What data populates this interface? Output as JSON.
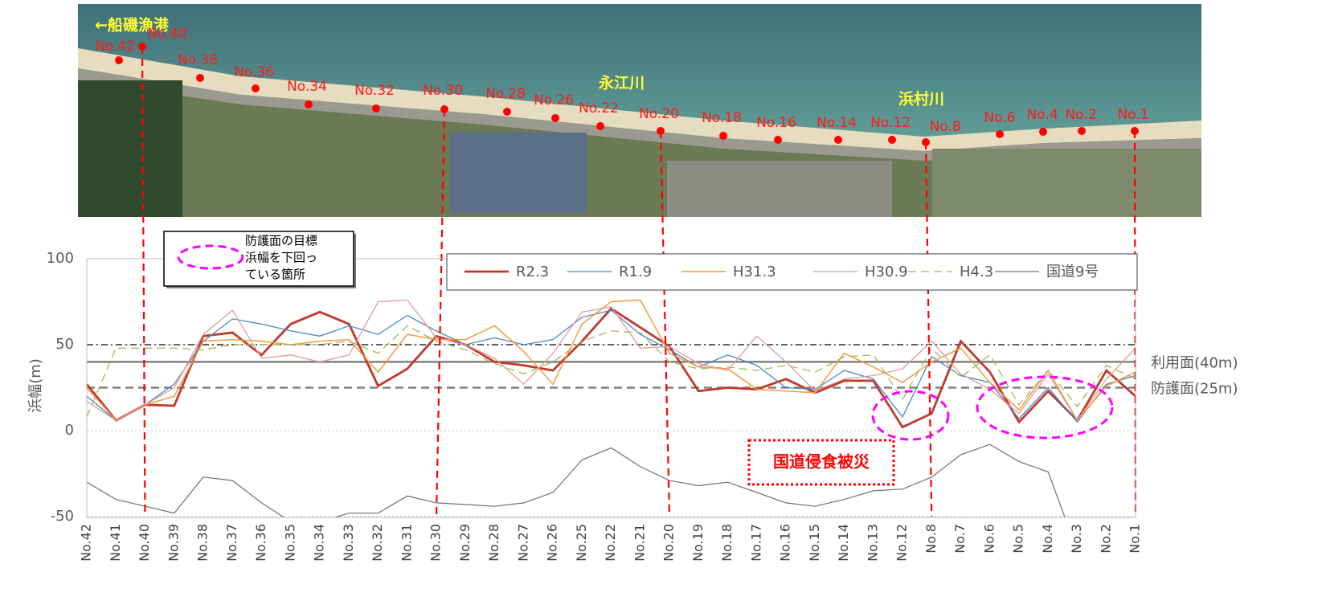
{
  "photo": {
    "places": [
      "←船磯漁港",
      "永江川",
      "浜村川"
    ],
    "site_labels": [
      "No.42",
      "No.40",
      "No.38",
      "No.36",
      "No.34",
      "No.32",
      "No.30",
      "No.28",
      "No.26",
      "No.22",
      "No.20",
      "No.18",
      "No.16",
      "No.14",
      "No.12",
      "No.8",
      "No.6",
      "No.4",
      "No.2",
      "No.1"
    ]
  },
  "annotations": {
    "target_legend": [
      "防護面の目標",
      "浜幅を下回っ",
      "ている箇所"
    ],
    "damage": "国道侵食被災"
  },
  "chart_data": {
    "type": "line",
    "y_label": "浜幅(m)",
    "categories": [
      "No.42",
      "No.41",
      "No.40",
      "No.39",
      "No.38",
      "No.37",
      "No.36",
      "No.35",
      "No.34",
      "No.33",
      "No.32",
      "No.31",
      "No.30",
      "No.29",
      "No.28",
      "No.27",
      "No.26",
      "No.25",
      "No.22",
      "No.21",
      "No.20",
      "No.19",
      "No.18",
      "No.17",
      "No.16",
      "No.15",
      "No.14",
      "No.13",
      "No.12",
      "No.8",
      "No.7",
      "No.6",
      "No.5",
      "No.4",
      "No.3",
      "No.2",
      "No.1"
    ],
    "ylim": [
      -50,
      100
    ],
    "yticks": [
      -50,
      0,
      50,
      100
    ],
    "section_boundaries": [
      "No.40",
      "No.30",
      "No.20",
      "No.8",
      "No.1"
    ],
    "reference_lines": [
      {
        "value": 50,
        "color": "#000000",
        "style": "dashdot"
      },
      {
        "value": 40,
        "color": "#808080",
        "style": "solid",
        "label": "利用面(40m)"
      },
      {
        "value": 25,
        "color": "#808080",
        "style": "dashed",
        "label": "防護面(25m)"
      }
    ],
    "series": [
      {
        "name": "R2.3",
        "color": "#c0392b",
        "style": "solid",
        "values": [
          27,
          6,
          15,
          14.5,
          55,
          57,
          44,
          62,
          69,
          62,
          26,
          36,
          55,
          50,
          40,
          38,
          35,
          52,
          71,
          60,
          49,
          23,
          25,
          24,
          30,
          22,
          29,
          29,
          2,
          10,
          52,
          34,
          5,
          23,
          6,
          35,
          20
        ]
      },
      {
        "name": "R1.9",
        "color": "#4a86c8",
        "style": "solid",
        "values": [
          20,
          6,
          15,
          27,
          52,
          65,
          62,
          58,
          55,
          61,
          56,
          67,
          58,
          50,
          54,
          50,
          53,
          66,
          70,
          56,
          47,
          37,
          44,
          38,
          25,
          24,
          35,
          30,
          8,
          43,
          32,
          28,
          7,
          25,
          5,
          27,
          32
        ]
      },
      {
        "name": "H31.3",
        "color": "#f59a3c",
        "style": "solid",
        "values": [
          25,
          6,
          15,
          20,
          52,
          53,
          52,
          50,
          52,
          53,
          34,
          56,
          53,
          53,
          61,
          46,
          27,
          62,
          75,
          76,
          45,
          37,
          36,
          24,
          23,
          22,
          45,
          37,
          28,
          40,
          48,
          28,
          12,
          35,
          6,
          26,
          34
        ]
      },
      {
        "name": "H30.9",
        "color": "#e39a9a",
        "style": "solid",
        "values": [
          17,
          6,
          15,
          25,
          56,
          70,
          42,
          44,
          40,
          44,
          75,
          76,
          54,
          50,
          42,
          27,
          45,
          69,
          72,
          48,
          49,
          39,
          35,
          55,
          40,
          23,
          30,
          32,
          36,
          52,
          33,
          24,
          10,
          33,
          6,
          30,
          48
        ]
      },
      {
        "name": "H4.3",
        "color": "#9bbb59",
        "style": "dashed",
        "values": [
          8,
          48,
          48,
          48,
          47,
          50,
          50,
          50,
          50,
          52,
          45,
          61,
          52,
          47,
          39,
          33,
          40,
          52,
          58,
          57,
          40,
          36,
          37,
          35,
          38,
          34,
          43,
          44,
          18,
          48,
          31,
          44,
          15,
          35,
          14,
          38,
          30
        ]
      },
      {
        "name": "国道9号",
        "color": "#707070",
        "style": "solid",
        "values": [
          -30,
          -40,
          -44,
          -48,
          -27,
          -29,
          -42,
          -53,
          -53,
          -48,
          -48,
          -38,
          -42,
          -43,
          -44,
          -42,
          -36,
          -17,
          -10,
          -21,
          -29,
          -32,
          -30,
          -36,
          -42,
          -44,
          -40,
          -35,
          -34,
          -27,
          -14,
          -8,
          -18,
          -24,
          -70,
          null,
          null
        ]
      }
    ]
  }
}
